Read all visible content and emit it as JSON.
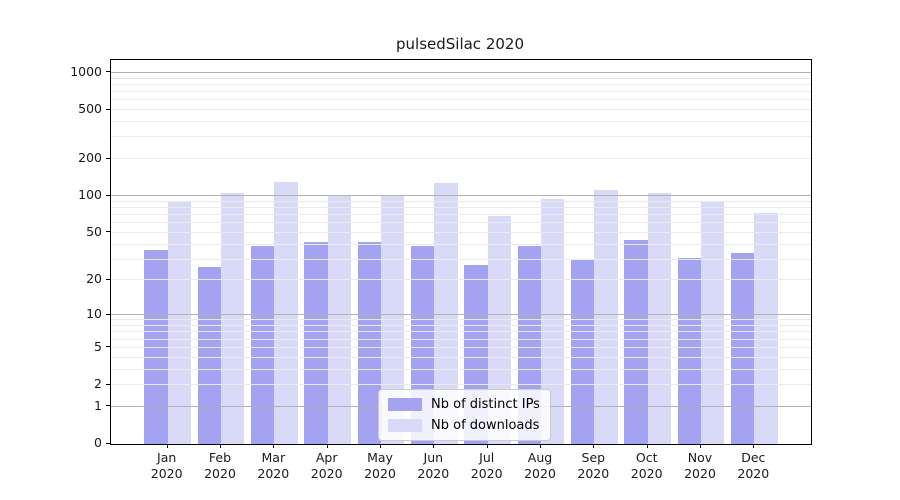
{
  "chart_data": {
    "type": "bar",
    "title": "pulsedSilac 2020",
    "categories": [
      "Jan",
      "Feb",
      "Mar",
      "Apr",
      "May",
      "Jun",
      "Jul",
      "Aug",
      "Sep",
      "Oct",
      "Nov",
      "Dec"
    ],
    "year": "2020",
    "series": [
      {
        "name": "Nb of distinct IPs",
        "color": "#a3a3f2",
        "values": [
          36,
          26,
          39,
          42,
          42,
          39,
          27,
          39,
          30,
          44,
          31,
          34
        ]
      },
      {
        "name": "Nb of downloads",
        "color": "#d9d9f8",
        "values": [
          90,
          106,
          130,
          101,
          101,
          128,
          69,
          95,
          113,
          107,
          90,
          73
        ]
      }
    ],
    "y_axis": {
      "scale": "log1p",
      "ticks": [
        0,
        1,
        2,
        5,
        10,
        20,
        50,
        100,
        200,
        500,
        1000
      ],
      "major_gridlines": [
        1,
        10,
        100,
        1000
      ],
      "minor_gridlines": [
        2,
        3,
        4,
        5,
        6,
        7,
        8,
        9,
        20,
        30,
        40,
        50,
        60,
        70,
        80,
        90,
        200,
        300,
        400,
        500,
        600,
        700,
        800,
        900
      ],
      "ylim": [
        0,
        1245
      ]
    },
    "legend": {
      "position": "bottom-center",
      "entries": [
        "Nb of distinct IPs",
        "Nb of downloads"
      ]
    },
    "grid": true,
    "colors": {
      "background": "#ffffff",
      "axis_border": "#000000",
      "major_grid": "#b0b0b0",
      "minor_grid": "#eaeaea",
      "text": "#1a1a1a",
      "legend_border": "#cccccc"
    }
  }
}
